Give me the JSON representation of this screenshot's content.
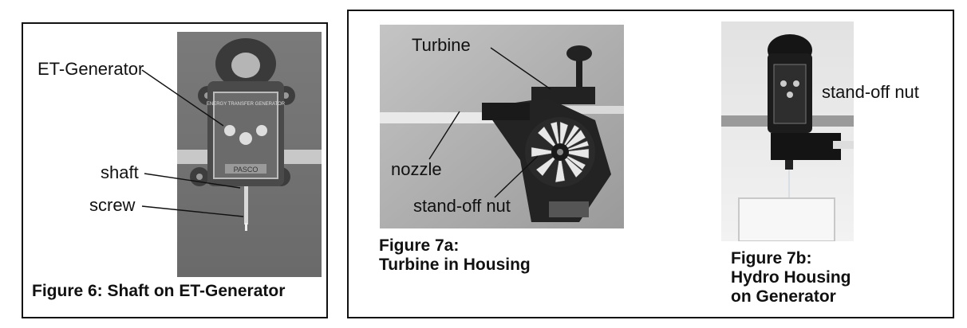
{
  "figure6": {
    "labels": {
      "et_generator": "ET-Generator",
      "shaft": "shaft",
      "screw": "screw"
    },
    "caption": "Figure 6: Shaft on ET-Generator",
    "panel_text": "ENERGY TRANSFER GENERATOR",
    "brand": "PASCO"
  },
  "figure7a": {
    "labels": {
      "turbine": "Turbine",
      "nozzle": "nozzle",
      "standoff_nut": "stand-off nut"
    },
    "caption_line1": "Figure 7a:",
    "caption_line2": "Turbine in Housing"
  },
  "figure7b": {
    "labels": {
      "standoff_nut": "stand-off nut"
    },
    "caption_line1": "Figure 7b:",
    "caption_line2": "Hydro Housing",
    "caption_line3": "on Generator"
  }
}
